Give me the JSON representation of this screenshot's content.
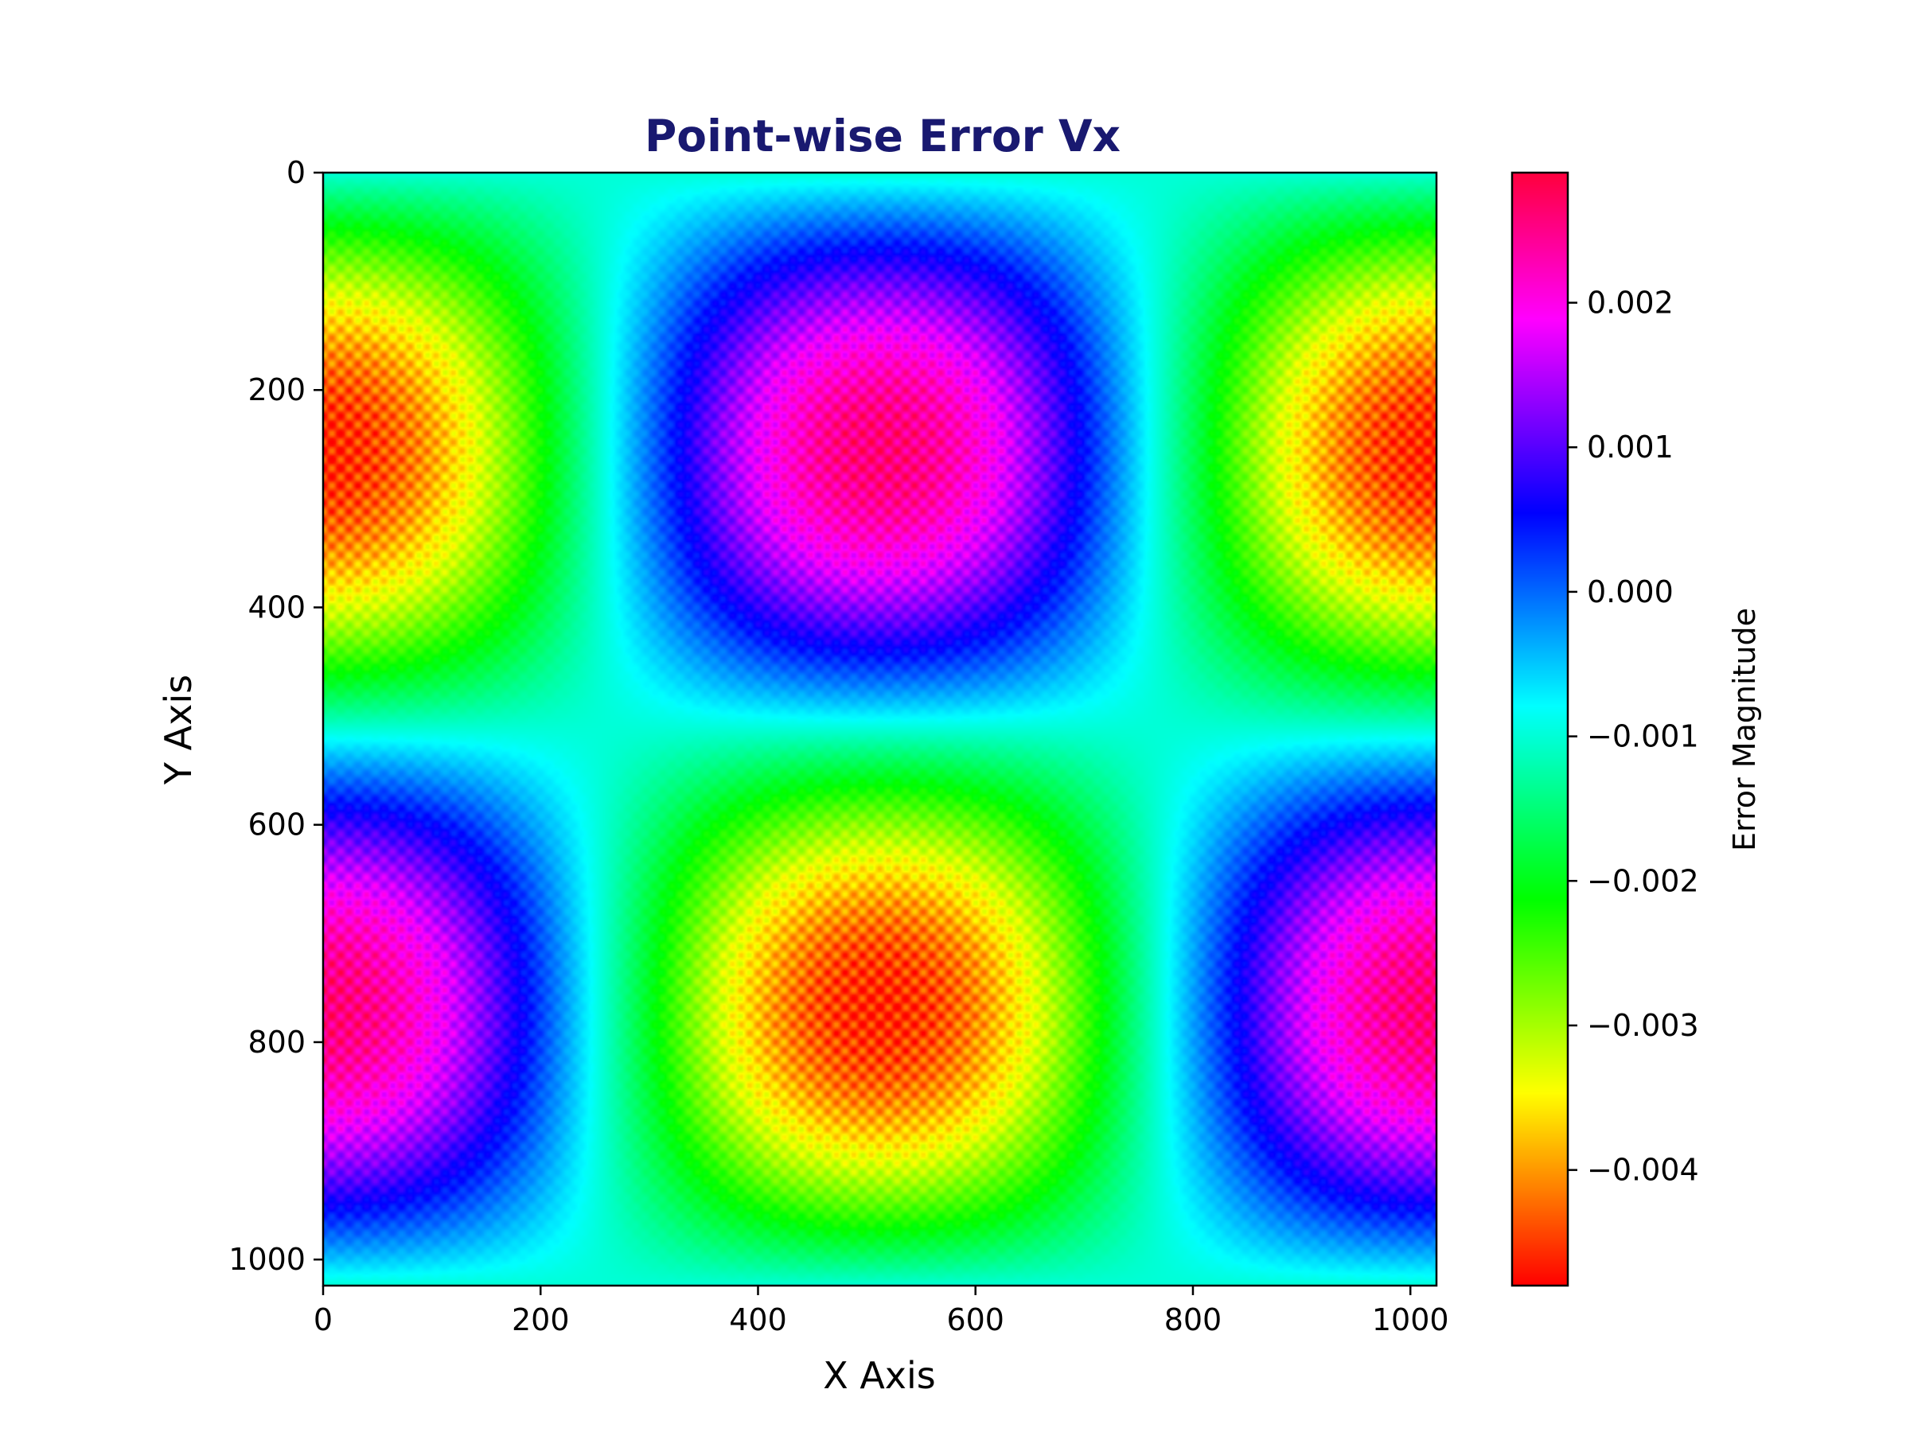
{
  "chart_data": {
    "type": "heatmap",
    "title": "Point-wise Error Vx",
    "xlabel": "X Axis",
    "ylabel": "Y Axis",
    "xlim": [
      0,
      1024
    ],
    "ylim": [
      1024,
      0
    ],
    "x_ticks": [
      0,
      200,
      400,
      600,
      800,
      1000
    ],
    "y_ticks": [
      0,
      200,
      400,
      600,
      800,
      1000
    ],
    "x_tick_labels": [
      "0",
      "200",
      "400",
      "600",
      "800",
      "1000"
    ],
    "y_tick_labels": [
      "0",
      "200",
      "400",
      "600",
      "800",
      "1000"
    ],
    "colormap": "gist_rainbow_r",
    "colorbar": {
      "label": "Error Magnitude",
      "range": [
        -0.0048,
        0.0029
      ],
      "ticks": [
        0.002,
        0.001,
        0.0,
        -0.001,
        -0.002,
        -0.003,
        -0.004
      ],
      "tick_labels": [
        "0.002",
        "0.001",
        "0.000",
        "−0.001",
        "−0.002",
        "−0.003",
        "−0.004"
      ]
    },
    "field": {
      "description_of_pattern": "Vx = -A*cos(2*pi*x/1024)*sin(2*pi*y/1024) + offset, with fine periodic ripple",
      "amplitude": 0.0036,
      "offset": -0.001,
      "ripple_period": 16,
      "ripple_amplitude": 0.12
    },
    "grid": false
  },
  "colors": {
    "title": "#191970",
    "axis": "#000000",
    "background": "#ffffff"
  }
}
